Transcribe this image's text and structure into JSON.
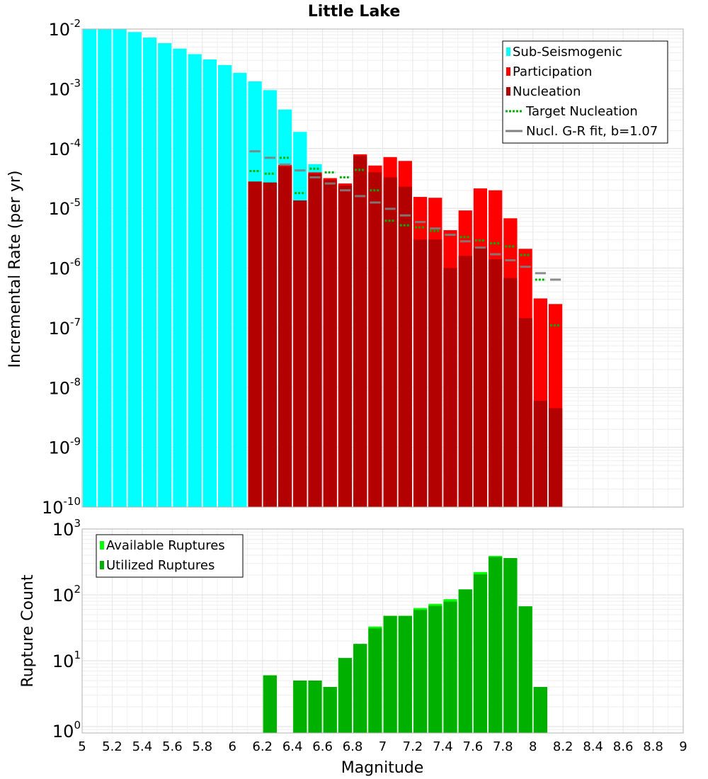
{
  "chart_data": {
    "title": "Little Lake",
    "xlabel": "Magnitude",
    "xlim": [
      5,
      9
    ],
    "xticks": [
      "5",
      "5.2",
      "5.4",
      "5.6",
      "5.8",
      "6",
      "6.2",
      "6.4",
      "6.6",
      "6.8",
      "7",
      "7.2",
      "7.4",
      "7.6",
      "7.8",
      "8",
      "8.2",
      "8.4",
      "8.6",
      "8.8",
      "9"
    ],
    "panels": [
      {
        "type": "bar",
        "scale": "log",
        "ylabel": "Incremental Rate (per yr)",
        "ylim": [
          1e-10,
          0.01
        ],
        "yticks": [
          {
            "base": "10",
            "exp": "-2"
          },
          {
            "base": "10",
            "exp": "-3"
          },
          {
            "base": "10",
            "exp": "-4"
          },
          {
            "base": "10",
            "exp": "-5"
          },
          {
            "base": "10",
            "exp": "-6"
          },
          {
            "base": "10",
            "exp": "-7"
          },
          {
            "base": "10",
            "exp": "-8"
          },
          {
            "base": "10",
            "exp": "-9"
          },
          {
            "base": "10",
            "exp": "-10"
          }
        ],
        "legend": [
          "Sub-Seismogenic",
          "Participation",
          "Nucleation",
          "Target Nucleation",
          "Nucl. G-R fit, b=1.07"
        ],
        "legend_position": "top-right",
        "series": [
          {
            "name": "Sub-Seismogenic",
            "kind": "bar",
            "color": "#00ffff",
            "x": [
              5.05,
              5.15,
              5.25,
              5.35,
              5.45,
              5.55,
              5.65,
              5.75,
              5.85,
              5.95,
              6.05,
              6.15,
              6.25,
              6.35,
              6.45,
              6.55
            ],
            "values": [
              0.01,
              0.01,
              0.01,
              0.0089,
              0.0072,
              0.0058,
              0.0047,
              0.0038,
              0.0031,
              0.0025,
              0.00185,
              0.00133,
              0.00095,
              0.00045,
              0.00019,
              5.5e-05
            ]
          },
          {
            "name": "Participation",
            "kind": "bar",
            "color": "#ff0000",
            "x": [
              6.15,
              6.25,
              6.35,
              6.45,
              6.55,
              6.65,
              6.75,
              6.85,
              6.95,
              7.05,
              7.15,
              7.25,
              7.35,
              7.45,
              7.55,
              7.65,
              7.75,
              7.85,
              7.95,
              8.05,
              8.15
            ],
            "values": [
              2.8e-05,
              2.7e-05,
              5.3e-05,
              1.35e-05,
              4e-05,
              3.2e-05,
              2.6e-05,
              8e-05,
              5.2e-05,
              7.2e-05,
              6.2e-05,
              1.55e-05,
              1.5e-05,
              4.3e-06,
              9.2e-06,
              2.15e-05,
              2e-05,
              6.8e-06,
              2.1e-06,
              3.1e-07,
              2.5e-07
            ]
          },
          {
            "name": "Nucleation",
            "kind": "bar",
            "color": "#b30000",
            "x": [
              6.15,
              6.25,
              6.35,
              6.45,
              6.55,
              6.65,
              6.75,
              6.85,
              6.95,
              7.05,
              7.15,
              7.25,
              7.35,
              7.45,
              7.55,
              7.65,
              7.75,
              7.85,
              7.95,
              8.05,
              8.15
            ],
            "values": [
              2.8e-05,
              2.7e-05,
              5e-05,
              1.35e-05,
              3.8e-05,
              3e-05,
              2.4e-05,
              7.5e-05,
              4e-05,
              3.3e-05,
              2.3e-05,
              3e-06,
              3e-06,
              1e-06,
              1.6e-06,
              2.2e-06,
              1.4e-06,
              6.8e-07,
              1.45e-07,
              6e-09,
              4.5e-09
            ]
          },
          {
            "name": "Target Nucleation",
            "kind": "step",
            "color": "#00b000",
            "x": [
              6.15,
              6.25,
              6.35,
              6.45,
              6.55,
              6.65,
              6.75,
              6.85,
              6.95,
              7.05,
              7.15,
              7.25,
              7.35,
              7.45,
              7.55,
              7.65,
              7.75,
              7.85,
              7.95,
              8.05,
              8.15
            ],
            "values": [
              4.2e-05,
              3.8e-05,
              7e-05,
              1.8e-05,
              4.6e-05,
              4e-05,
              3.3e-05,
              4.4e-05,
              2e-05,
              6.2e-06,
              5.2e-06,
              4.8e-06,
              4.2e-06,
              3.6e-06,
              3.3e-06,
              2.9e-06,
              2.6e-06,
              2.3e-06,
              1.65e-06,
              6.4e-07,
              1.1e-07
            ]
          },
          {
            "name": "Nucl. G-R fit, b=1.07",
            "kind": "step",
            "color": "#808080",
            "x": [
              6.15,
              6.25,
              6.35,
              6.45,
              6.55,
              6.65,
              6.75,
              6.85,
              6.95,
              7.05,
              7.15,
              7.25,
              7.35,
              7.45,
              7.55,
              7.65,
              7.75,
              7.85,
              7.95,
              8.05,
              8.15
            ],
            "values": [
              9e-05,
              7e-05,
              5.4e-05,
              4.3e-05,
              3.3e-05,
              2.6e-05,
              2e-05,
              1.6e-05,
              1.25e-05,
              9.8e-06,
              7.6e-06,
              5.9e-06,
              4.6e-06,
              3.6e-06,
              2.8e-06,
              2.2e-06,
              1.7e-06,
              1.35e-06,
              1.05e-06,
              8.2e-07,
              6.4e-07
            ]
          }
        ]
      },
      {
        "type": "bar",
        "scale": "log",
        "ylabel": "Rupture Count",
        "ylim": [
          0.8,
          1000
        ],
        "yticks": [
          {
            "base": "10",
            "exp": "3"
          },
          {
            "base": "10",
            "exp": "2"
          },
          {
            "base": "10",
            "exp": "1"
          },
          {
            "base": "10",
            "exp": "0"
          }
        ],
        "legend": [
          "Available Ruptures",
          "Utilized Ruptures"
        ],
        "legend_position": "top-left",
        "series": [
          {
            "name": "Available Ruptures",
            "kind": "bar",
            "color": "#00ff00",
            "x": [
              6.25,
              6.45,
              6.55,
              6.65,
              6.75,
              6.85,
              6.95,
              7.05,
              7.15,
              7.25,
              7.35,
              7.45,
              7.55,
              7.65,
              7.75,
              7.85,
              7.95,
              8.05
            ],
            "values": [
              6,
              5,
              5,
              4,
              11,
              18,
              33,
              48,
              48,
              63,
              73,
              86,
              121,
              222,
              390,
              362,
              67,
              4
            ]
          },
          {
            "name": "Utilized Ruptures",
            "kind": "bar",
            "color": "#00b000",
            "x": [
              6.25,
              6.45,
              6.55,
              6.65,
              6.75,
              6.85,
              6.95,
              7.05,
              7.15,
              7.25,
              7.35,
              7.45,
              7.55,
              7.65,
              7.75,
              7.85,
              7.95,
              8.05
            ],
            "values": [
              6,
              5,
              5,
              4,
              11,
              18,
              31,
              48,
              48,
              59,
              68,
              79,
              121,
              205,
              375,
              362,
              67,
              4
            ]
          }
        ]
      }
    ]
  }
}
